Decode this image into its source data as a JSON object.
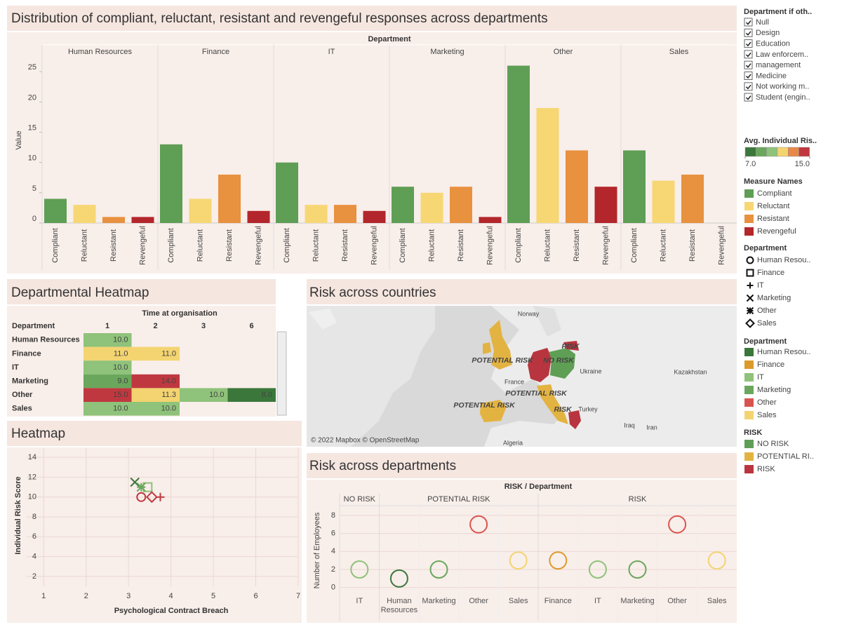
{
  "chart_data": [
    {
      "type": "bar",
      "title": "Distribution of compliant, reluctant, resistant and revengeful responses across departments",
      "group_axis_label": "Department",
      "y_label": "Value",
      "categories": [
        "Compliant",
        "Reluctant",
        "Resistant",
        "Revengeful"
      ],
      "colors": [
        "#5f9e55",
        "#f7d774",
        "#e8913f",
        "#b3262b"
      ],
      "groups": [
        {
          "name": "Human Resources",
          "values": [
            4,
            3,
            1,
            1
          ]
        },
        {
          "name": "Finance",
          "values": [
            13,
            4,
            8,
            2
          ]
        },
        {
          "name": "IT",
          "values": [
            10,
            3,
            3,
            2
          ]
        },
        {
          "name": "Marketing",
          "values": [
            6,
            5,
            6,
            1
          ]
        },
        {
          "name": "Other",
          "values": [
            26,
            19,
            12,
            6
          ]
        },
        {
          "name": "Sales",
          "values": [
            12,
            7,
            8,
            null
          ]
        }
      ],
      "ylim": [
        0,
        27
      ],
      "yticks": [
        0,
        5,
        10,
        15,
        20,
        25
      ]
    },
    {
      "type": "heatmap",
      "title": "Departmental Heatmap",
      "column_title": "Time at organisation",
      "row_title": "Department",
      "columns": [
        "1",
        "2",
        "3",
        "6"
      ],
      "rows": [
        "Human Resources",
        "Finance",
        "IT",
        "Marketing",
        "Other",
        "Sales"
      ],
      "values": [
        [
          10,
          null,
          null,
          null
        ],
        [
          11,
          11,
          null,
          null
        ],
        [
          10,
          null,
          null,
          null
        ],
        [
          9,
          14,
          null,
          null
        ],
        [
          15,
          11.3,
          10,
          8
        ],
        [
          10,
          10,
          null,
          null
        ]
      ],
      "value_labels": [
        [
          "10.0",
          null,
          null,
          null
        ],
        [
          "11.0",
          "11.0",
          null,
          null
        ],
        [
          "10.0",
          null,
          null,
          null
        ],
        [
          "9.0",
          "14.0",
          null,
          null
        ],
        [
          "15.0",
          "11.3",
          "10.0",
          "8.0"
        ],
        [
          "10.0",
          "10.0",
          null,
          null
        ]
      ],
      "color_legend": {
        "title": "Avg. Individual Ris..",
        "range": [
          7,
          15
        ],
        "range_labels": [
          "7.0",
          "15.0"
        ],
        "colors": [
          "#3b773b",
          "#6aa75c",
          "#8fc27a",
          "#f3d470",
          "#e8894a",
          "#c0383f"
        ]
      }
    },
    {
      "type": "scatter",
      "title": "Heatmap",
      "x_label": "Psychological Contract Breach",
      "y_label": "Individual Risk Score",
      "xlim": [
        0.6,
        7
      ],
      "xticks": [
        1,
        2,
        3,
        4,
        5,
        6,
        7
      ],
      "ylim": [
        1,
        15
      ],
      "yticks": [
        2,
        4,
        6,
        8,
        10,
        12,
        14
      ],
      "grid": true,
      "legend_title": "Department",
      "series": [
        {
          "name": "Human Resou..",
          "shape": "circle",
          "color": "#c0383f",
          "x": [
            3.3
          ],
          "y": [
            10
          ]
        },
        {
          "name": "Finance",
          "shape": "square",
          "color": "#8fc27a",
          "x": [
            3.45
          ],
          "y": [
            11
          ]
        },
        {
          "name": "IT",
          "shape": "plus",
          "color": "#c0383f",
          "x": [
            3.75
          ],
          "y": [
            10
          ]
        },
        {
          "name": "Marketing",
          "shape": "x",
          "color": "#3b773b",
          "x": [
            3.15
          ],
          "y": [
            11.5
          ]
        },
        {
          "name": "Other",
          "shape": "asterisk",
          "color": "#6aa75c",
          "x": [
            3.3
          ],
          "y": [
            11
          ]
        },
        {
          "name": "Sales",
          "shape": "diamond",
          "color": "#c0383f",
          "x": [
            3.55
          ],
          "y": [
            10
          ]
        }
      ]
    },
    {
      "type": "map",
      "title": "Risk across countries",
      "attribution": "© 2022 Mapbox © OpenStreetMap",
      "place_labels": [
        "Norway",
        "Ukraine",
        "Kazakhstan",
        "France",
        "Turkey",
        "Iraq",
        "Iran",
        "Algeria"
      ],
      "risk_labels": [
        "POTENTIAL RISK",
        "NO RISK",
        "RISK",
        "POTENTIAL RISK",
        "POTENTIAL RISK",
        "RISK"
      ],
      "risk_legend": {
        "title": "RISK",
        "items": [
          "NO RISK",
          "POTENTIAL RI..",
          "RISK"
        ],
        "colors": [
          "#5f9e55",
          "#e3b342",
          "#b8353f"
        ]
      }
    },
    {
      "type": "dot",
      "title": "Risk across departments",
      "header": "RISK / Department",
      "y_label": "Number of Employees",
      "ylim": [
        -0.8,
        9
      ],
      "yticks": [
        0,
        2,
        4,
        6,
        8
      ],
      "groups": [
        {
          "name": "NO RISK",
          "categories": [
            "IT"
          ],
          "values": [
            2
          ],
          "colors": [
            "#8fc27a"
          ]
        },
        {
          "name": "POTENTIAL RISK",
          "categories": [
            "Human Resources",
            "Marketing",
            "Other",
            "Sales"
          ],
          "values": [
            1,
            2,
            7,
            3
          ],
          "colors": [
            "#3b773b",
            "#6aa75c",
            "#d9544f",
            "#f3d470"
          ]
        },
        {
          "name": "RISK",
          "categories": [
            "Finance",
            "IT",
            "Marketing",
            "Other",
            "Sales"
          ],
          "values": [
            3,
            2,
            2,
            7,
            3
          ],
          "colors": [
            "#dc9a2b",
            "#8fc27a",
            "#6aa75c",
            "#d9544f",
            "#f3d470"
          ]
        }
      ],
      "color_legend": {
        "title": "Department",
        "items": [
          "Human Resou..",
          "Finance",
          "IT",
          "Marketing",
          "Other",
          "Sales"
        ],
        "colors": [
          "#3b773b",
          "#dc9a2b",
          "#8fc27a",
          "#6aa75c",
          "#d9544f",
          "#f3d470"
        ]
      }
    }
  ],
  "filter": {
    "title": "Department if oth..",
    "items": [
      "Null",
      "Design",
      "Education",
      "Law enforcem..",
      "management",
      "Medicine",
      "Not working m..",
      "Student (engin.."
    ]
  },
  "measure_legend_title": "Measure Names"
}
